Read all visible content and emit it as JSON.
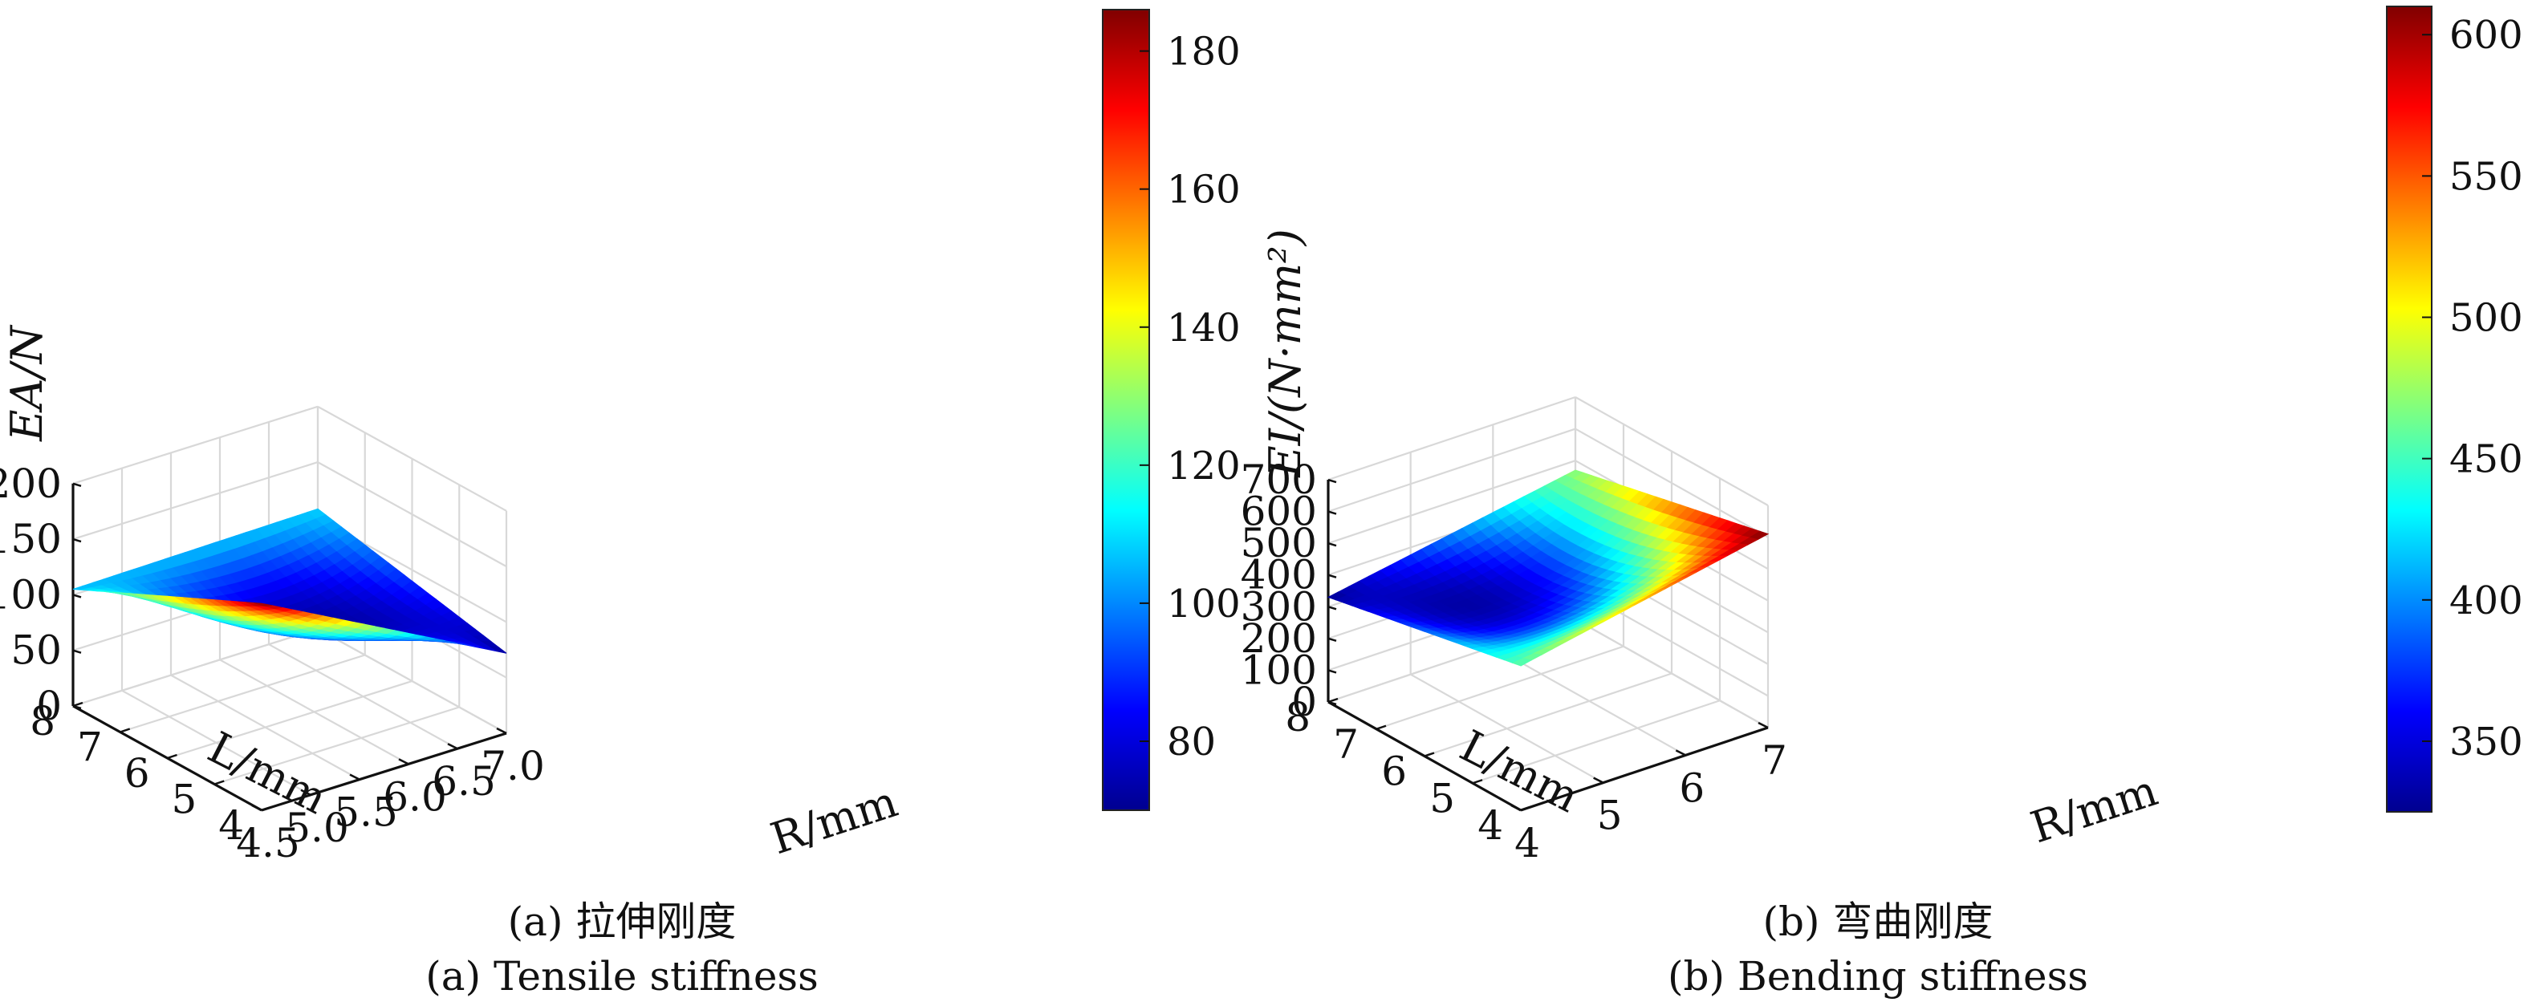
{
  "chart_data": [
    {
      "type": "surface3d",
      "panel": "a",
      "caption_cn": "(a) 拉伸刚度",
      "caption_en": "(a) Tensile stiffness",
      "zlabel": "EA/N",
      "xlabel": "R/mm",
      "ylabel": "L/mm",
      "zlim": [
        0,
        200
      ],
      "xlim": [
        4.5,
        7.0
      ],
      "ylim": [
        4,
        8
      ],
      "z_ticks": [
        "0",
        "50",
        "100",
        "150",
        "200"
      ],
      "x_ticks": [
        "4.5",
        "5.0",
        "5.5",
        "6.0",
        "6.5",
        "7.0"
      ],
      "y_ticks": [
        "4",
        "5",
        "6",
        "7",
        "8"
      ],
      "colorbar": {
        "min": 70,
        "max": 186,
        "ticks": [
          "80",
          "100",
          "120",
          "140",
          "160",
          "180"
        ]
      },
      "surface": {
        "corners": [
          {
            "R": 4.5,
            "L": 8,
            "value": 105
          },
          {
            "R": 7.0,
            "L": 8,
            "value": 108
          },
          {
            "R": 7.0,
            "L": 4,
            "value": 72
          },
          {
            "R": 4.5,
            "L": 4,
            "value": 186
          }
        ],
        "center": {
          "R": 5.75,
          "L": 6,
          "value": 80
        }
      }
    },
    {
      "type": "surface3d",
      "panel": "b",
      "caption_cn": "(b) 弯曲刚度",
      "caption_en": "(b) Bending stiffness",
      "zlabel": "EI/(N·mm²)",
      "xlabel": "R/mm",
      "ylabel": "L/mm",
      "zlim": [
        0,
        700
      ],
      "xlim": [
        4,
        7
      ],
      "ylim": [
        4,
        8
      ],
      "z_ticks": [
        "0",
        "100",
        "200",
        "300",
        "400",
        "500",
        "600",
        "700"
      ],
      "x_ticks": [
        "4",
        "5",
        "6",
        "7"
      ],
      "y_ticks": [
        "4",
        "5",
        "6",
        "7",
        "8"
      ],
      "colorbar": {
        "min": 325,
        "max": 610,
        "ticks": [
          "350",
          "400",
          "450",
          "500",
          "550",
          "600"
        ]
      },
      "surface": {
        "corners": [
          {
            "R": 4,
            "L": 8,
            "value": 330
          },
          {
            "R": 7,
            "L": 8,
            "value": 470
          },
          {
            "R": 7,
            "L": 4,
            "value": 610
          },
          {
            "R": 4,
            "L": 4,
            "value": 455
          }
        ],
        "center": {
          "R": 5.5,
          "L": 6,
          "value": 360
        }
      }
    }
  ]
}
